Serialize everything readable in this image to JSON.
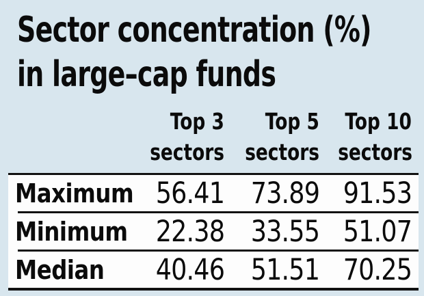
{
  "title": {
    "line1": "Sector concentration (%)",
    "line2": "in large–cap funds"
  },
  "table": {
    "columns": [
      {
        "line1": "Top 3",
        "line2": "sectors"
      },
      {
        "line1": "Top 5",
        "line2": "sectors"
      },
      {
        "line1": "Top 10",
        "line2": "sectors"
      }
    ],
    "rows": [
      {
        "label": "Maximum",
        "values": [
          "56.41",
          "73.89",
          "91.53"
        ]
      },
      {
        "label": "Minimum",
        "values": [
          "22.38",
          "33.55",
          "51.07"
        ]
      },
      {
        "label": "Median",
        "values": [
          "40.46",
          "51.51",
          "70.25"
        ]
      }
    ]
  },
  "colors": {
    "background": "#d8e6ee",
    "table_background": "#fdfdfd",
    "text": "#0b0b0b",
    "rule": "#121212"
  },
  "chart_data": {
    "type": "table",
    "title": "Sector concentration (%) in large-cap funds",
    "categories": [
      "Top 3 sectors",
      "Top 5 sectors",
      "Top 10 sectors"
    ],
    "series": [
      {
        "name": "Maximum",
        "values": [
          56.41,
          73.89,
          91.53
        ]
      },
      {
        "name": "Minimum",
        "values": [
          22.38,
          33.55,
          51.07
        ]
      },
      {
        "name": "Median",
        "values": [
          40.46,
          51.51,
          70.25
        ]
      }
    ],
    "unit": "percent",
    "layout": "rows are statistics, columns are sector groupings"
  }
}
